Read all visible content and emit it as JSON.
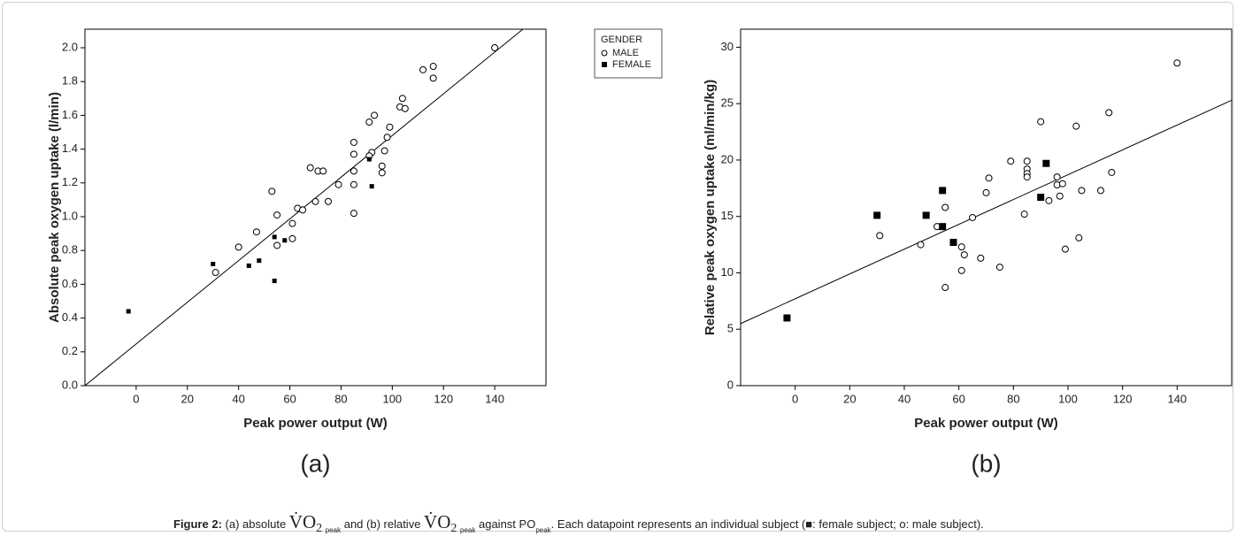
{
  "chart_data": [
    {
      "type": "scatter",
      "panel": "(a)",
      "x_label": "Peak power output (W)",
      "y_label": "Absolute peak oxygen uptake (l/min)",
      "xlim": [
        -20,
        160
      ],
      "xticks": [
        0,
        20,
        40,
        60,
        80,
        100,
        120,
        140
      ],
      "ylim": [
        0,
        2.11
      ],
      "yticks": [
        {
          "value": 0,
          "label": "0.0"
        },
        0.2,
        0.4,
        0.6,
        0.8,
        {
          "value": 1,
          "label": "1.0"
        },
        1.2,
        1.4,
        1.6,
        1.8,
        {
          "value": 2,
          "label": "2.0"
        }
      ],
      "legend_title": "GENDER",
      "series": [
        {
          "name": "MALE",
          "color": "#000000",
          "marker": "circle",
          "x": [
            31,
            40,
            47,
            53,
            55,
            55,
            61,
            61,
            63,
            65,
            68,
            70,
            71,
            73,
            75,
            79,
            85,
            85,
            85,
            85,
            85,
            91,
            92,
            91,
            93,
            96,
            96,
            97,
            98,
            99,
            103,
            104,
            105,
            112,
            116,
            116,
            140
          ],
          "values": [
            0.67,
            0.82,
            0.91,
            1.15,
            1.01,
            0.83,
            0.96,
            0.87,
            1.05,
            1.04,
            1.29,
            1.09,
            1.27,
            1.27,
            1.09,
            1.19,
            1.19,
            1.44,
            1.37,
            1.27,
            1.02,
            1.56,
            1.38,
            1.36,
            1.6,
            1.3,
            1.26,
            1.39,
            1.47,
            1.53,
            1.65,
            1.7,
            1.64,
            1.87,
            1.82,
            1.89,
            2.0
          ]
        },
        {
          "name": "FEMALE",
          "color": "#000000",
          "marker": "square",
          "x": [
            -3,
            30,
            44,
            48,
            54,
            58,
            54,
            91,
            92
          ],
          "values": [
            0.44,
            0.72,
            0.71,
            0.74,
            0.88,
            0.86,
            0.62,
            1.34,
            1.18
          ]
        }
      ],
      "fit_line": {
        "x": [
          -20,
          151
        ],
        "y": [
          0,
          2.11
        ]
      }
    },
    {
      "type": "scatter",
      "panel": "(b)",
      "x_label": "Peak power output (W)",
      "y_label": "Relative peak oxygen uptake (ml/min/kg)",
      "xlim": [
        -20,
        160
      ],
      "xticks": [
        0,
        20,
        40,
        60,
        80,
        100,
        120,
        140
      ],
      "ylim": [
        0,
        31.6
      ],
      "yticks": [
        0,
        5,
        10,
        15,
        20,
        25,
        30
      ],
      "series": [
        {
          "name": "MALE",
          "color": "#000000",
          "marker": "circle",
          "x": [
            31,
            46,
            52,
            55,
            55,
            61,
            61,
            62,
            65,
            68,
            70,
            71,
            75,
            79,
            84,
            85,
            85,
            85,
            85,
            90,
            93,
            96,
            96,
            97,
            98,
            99,
            103,
            104,
            105,
            112,
            115,
            116,
            140
          ],
          "values": [
            13.3,
            12.5,
            14.1,
            15.8,
            8.7,
            12.3,
            10.2,
            11.6,
            14.9,
            11.3,
            17.1,
            18.4,
            10.5,
            19.9,
            15.2,
            19.9,
            19.2,
            18.8,
            18.5,
            23.4,
            16.4,
            18.5,
            17.8,
            16.8,
            17.9,
            12.1,
            23.0,
            13.1,
            17.3,
            17.3,
            24.2,
            18.9,
            28.6
          ]
        },
        {
          "name": "FEMALE",
          "color": "#000000",
          "marker": "square",
          "x": [
            -3,
            30,
            48,
            54,
            54,
            58,
            90,
            92
          ],
          "values": [
            6.0,
            15.1,
            15.1,
            17.3,
            14.1,
            12.7,
            16.7,
            19.7
          ]
        }
      ],
      "fit_line": {
        "x": [
          -20,
          160
        ],
        "y": [
          5.5,
          25.3
        ]
      }
    }
  ],
  "caption": {
    "label": "Figure 2:",
    "parts": [
      " (a) absolute ",
      "V̇O",
      "2",
      "peak",
      " and (b) relative ",
      "V̇O",
      "2",
      "peak",
      " against PO",
      "peak",
      ". Each datapoint represents an individual subject (■: female subject; o: male subject)."
    ]
  }
}
